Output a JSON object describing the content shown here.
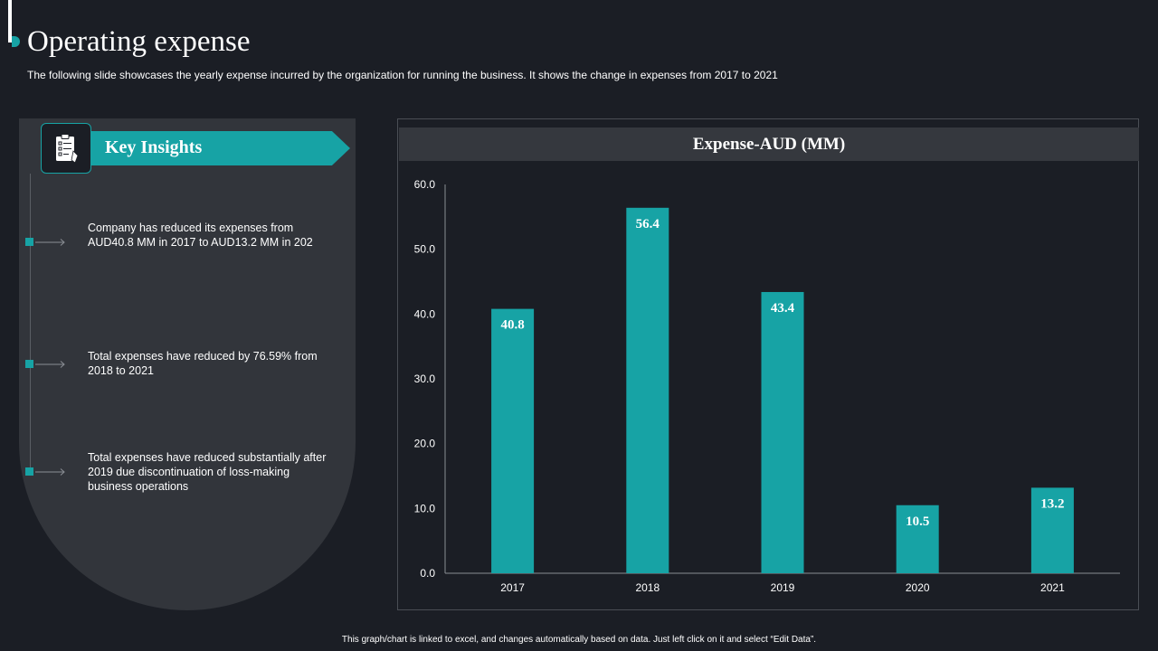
{
  "slide": {
    "title": "Operating expense",
    "subtitle": "The following slide showcases the yearly expense incurred by the organization for running the business. It shows the change in expenses from 2017 to 2021",
    "footer": "This graph/chart is linked to excel, and changes automatically based on data. Just left click on it and select “Edit Data”."
  },
  "insights": {
    "title": "Key Insights",
    "icon": "clipboard-checklist-icon",
    "items": [
      {
        "text": "Company has reduced its expenses from AUD40.8 MM in 2017 to AUD13.2 MM in 202"
      },
      {
        "text": "Total expenses have reduced by 76.59% from 2018 to 2021"
      },
      {
        "text": "Total expenses have reduced substantially after 2019 due discontinuation of loss-making business operations"
      }
    ]
  },
  "colors": {
    "background": "#1b1e25",
    "accent": "#17a3a5",
    "panel": "#32353b"
  },
  "chart_data": {
    "type": "bar",
    "title": "Expense-AUD (MM)",
    "categories": [
      "2017",
      "2018",
      "2019",
      "2020",
      "2021"
    ],
    "values": [
      40.8,
      56.4,
      43.4,
      10.5,
      13.2
    ],
    "value_labels": [
      "40.8",
      "56.4",
      "43.4",
      "10.5",
      "13.2"
    ],
    "yticks": [
      "0.0",
      "10.0",
      "20.0",
      "30.0",
      "40.0",
      "50.0",
      "60.0"
    ],
    "ylim": [
      0,
      60
    ],
    "xlabel": "",
    "ylabel": "",
    "grid": false,
    "legend": "none",
    "bar_color": "#17a3a5"
  }
}
